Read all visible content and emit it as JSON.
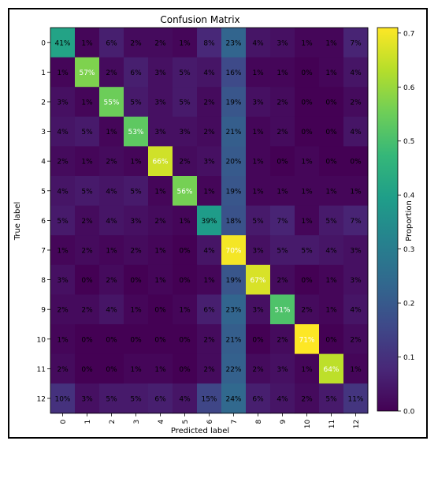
{
  "chart_data": {
    "type": "heatmap",
    "title": "Confusion Matrix",
    "xlabel": "Predicted label",
    "ylabel": "True label",
    "x_ticks": [
      "0",
      "1",
      "2",
      "3",
      "4",
      "5",
      "6",
      "7",
      "8",
      "9",
      "10",
      "11",
      "12"
    ],
    "y_ticks": [
      "0",
      "1",
      "2",
      "3",
      "4",
      "5",
      "6",
      "7",
      "8",
      "9",
      "10",
      "11",
      "12"
    ],
    "values": [
      [
        41,
        1,
        6,
        2,
        2,
        1,
        8,
        23,
        4,
        3,
        1,
        1,
        7
      ],
      [
        1,
        57,
        2,
        6,
        3,
        5,
        4,
        16,
        1,
        1,
        0,
        1,
        4
      ],
      [
        3,
        1,
        55,
        5,
        3,
        5,
        2,
        19,
        3,
        2,
        0,
        0,
        2
      ],
      [
        4,
        5,
        1,
        53,
        3,
        3,
        2,
        21,
        1,
        2,
        0,
        0,
        4
      ],
      [
        2,
        1,
        2,
        1,
        66,
        2,
        3,
        20,
        1,
        0,
        1,
        0,
        0
      ],
      [
        4,
        5,
        4,
        5,
        1,
        56,
        1,
        19,
        1,
        1,
        1,
        1,
        1
      ],
      [
        5,
        2,
        4,
        3,
        2,
        1,
        39,
        18,
        5,
        7,
        1,
        5,
        7
      ],
      [
        1,
        2,
        1,
        2,
        1,
        0,
        4,
        70,
        3,
        5,
        5,
        4,
        3
      ],
      [
        3,
        0,
        2,
        0,
        1,
        0,
        1,
        19,
        67,
        2,
        0,
        1,
        3
      ],
      [
        2,
        2,
        4,
        1,
        0,
        1,
        6,
        23,
        3,
        51,
        2,
        1,
        4
      ],
      [
        1,
        0,
        0,
        0,
        0,
        0,
        2,
        21,
        0,
        2,
        71,
        0,
        2
      ],
      [
        2,
        0,
        0,
        1,
        1,
        0,
        2,
        22,
        2,
        3,
        1,
        64,
        1
      ],
      [
        10,
        3,
        5,
        5,
        6,
        4,
        15,
        24,
        6,
        4,
        2,
        5,
        11
      ]
    ],
    "value_suffix": "%",
    "colormap": "viridis",
    "colorbar": {
      "label": "Proportion",
      "range": [
        0.0,
        0.71
      ],
      "ticks": [
        "0.0",
        "0.1",
        "0.2",
        "0.3",
        "0.4",
        "0.5",
        "0.6",
        "0.7"
      ]
    }
  }
}
